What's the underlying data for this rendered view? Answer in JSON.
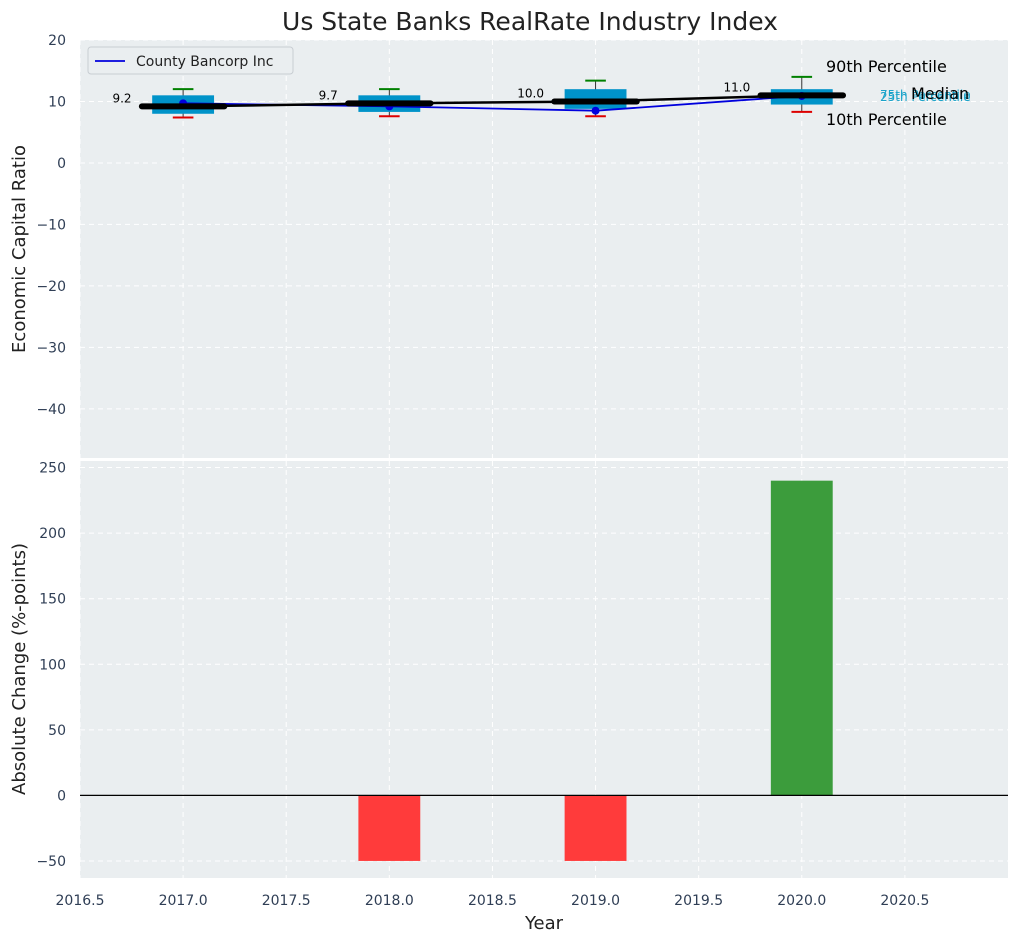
{
  "chart_data": [
    {
      "type": "box",
      "title": "Us State Banks RealRate Industry Index",
      "ylabel": "Economic Capital Ratio",
      "ylim": [
        -48,
        20
      ],
      "yticks": [
        20,
        10,
        0,
        -10,
        -20,
        -30,
        -40
      ],
      "ytick_labels": [
        "20",
        "10",
        "0",
        "−10",
        "−20",
        "−30",
        "−40"
      ],
      "xlim": [
        2016.5,
        2021.0
      ],
      "years": [
        2017,
        2018,
        2019,
        2020
      ],
      "p10": [
        7.4,
        7.6,
        7.6,
        8.3
      ],
      "p25": [
        8.0,
        8.3,
        8.8,
        9.5
      ],
      "median": [
        9.2,
        9.7,
        10.0,
        11.0
      ],
      "p75": [
        11.0,
        11.0,
        12.0,
        12.0
      ],
      "p90": [
        12.0,
        12.0,
        13.4,
        14.0
      ],
      "median_labels": [
        "9.2",
        "9.7",
        "10.0",
        "11.0"
      ],
      "series": [
        {
          "name": "County Bancorp Inc",
          "values": [
            9.7,
            9.2,
            8.5,
            10.9
          ],
          "color": "#0000dd"
        }
      ],
      "legend": {
        "entries": [
          "County Bancorp Inc"
        ],
        "position": "upper-left"
      },
      "percentile_labels": {
        "p90": "90th Percentile",
        "p75": "75th Percentile",
        "median": "Median",
        "p25": "25th Percentile",
        "p10": "10th Percentile"
      },
      "colors": {
        "box": "#0093c9",
        "median_line": "#000000",
        "p90_whisker": "#008000",
        "p10_whisker": "#dd0000",
        "quartile_label": "#1aa3c9"
      }
    },
    {
      "type": "bar",
      "ylabel": "Absolute Change (%-points)",
      "xlabel": "Year",
      "ylim": [
        -63,
        255
      ],
      "yticks": [
        250,
        200,
        150,
        100,
        50,
        0,
        -50
      ],
      "ytick_labels": [
        "250",
        "200",
        "150",
        "100",
        "50",
        "0",
        "−50"
      ],
      "xlim": [
        2016.5,
        2021.0
      ],
      "xticks": [
        2016.5,
        2017.0,
        2017.5,
        2018.0,
        2018.5,
        2019.0,
        2019.5,
        2020.0,
        2020.5
      ],
      "xtick_labels": [
        "2016.5",
        "2017.0",
        "2017.5",
        "2018.0",
        "2018.5",
        "2019.0",
        "2019.5",
        "2020.0",
        "2020.5"
      ],
      "categories": [
        2018,
        2019,
        2020
      ],
      "values": [
        -50,
        -50,
        240
      ],
      "colors": {
        "positive": "#3c9c3c",
        "negative": "#ff3b3b"
      }
    }
  ]
}
